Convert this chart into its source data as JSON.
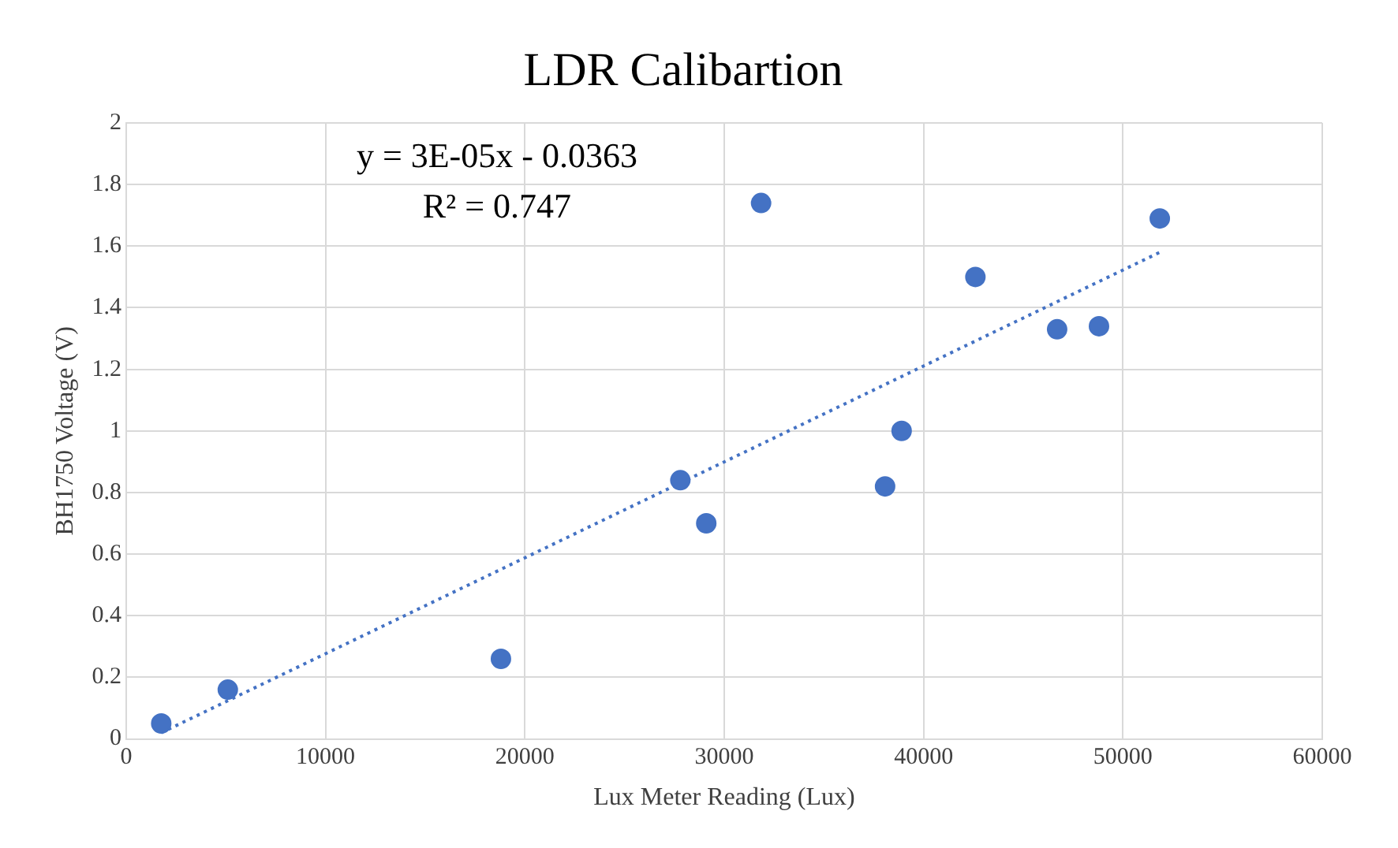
{
  "chart_data": {
    "type": "scatter",
    "title": "LDR Calibartion",
    "xlabel": "Lux Meter Reading (Lux)",
    "ylabel": "BH1750 Voltage (V)",
    "series": [
      {
        "color": "#4472c4",
        "marker": "circle",
        "x": [
          1760,
          5100,
          18800,
          27800,
          29100,
          31850,
          38070,
          38900,
          42600,
          46700,
          48800,
          51850
        ],
        "values": [
          0.05,
          0.16,
          0.26,
          0.84,
          0.7,
          1.74,
          0.82,
          1.0,
          1.5,
          1.33,
          1.34,
          1.69
        ]
      },
      {
        "type": "line",
        "color": "#4472c4",
        "marker": "none",
        "line_style": "dotted",
        "x": [
          1760,
          51850
        ],
        "values": [
          0.02,
          1.58
        ]
      }
    ],
    "xlim": [
      0,
      60000
    ],
    "xticks": [
      0,
      10000,
      20000,
      30000,
      40000,
      50000,
      60000
    ],
    "ylim": [
      0,
      2
    ],
    "yticks": [
      0,
      0.2,
      0.4,
      0.6,
      0.8,
      1,
      1.2,
      1.4,
      1.6,
      1.8,
      2
    ],
    "grid": true,
    "annotations": [
      "y = 3E-05x - 0.0363",
      "R² = 0.747"
    ]
  }
}
